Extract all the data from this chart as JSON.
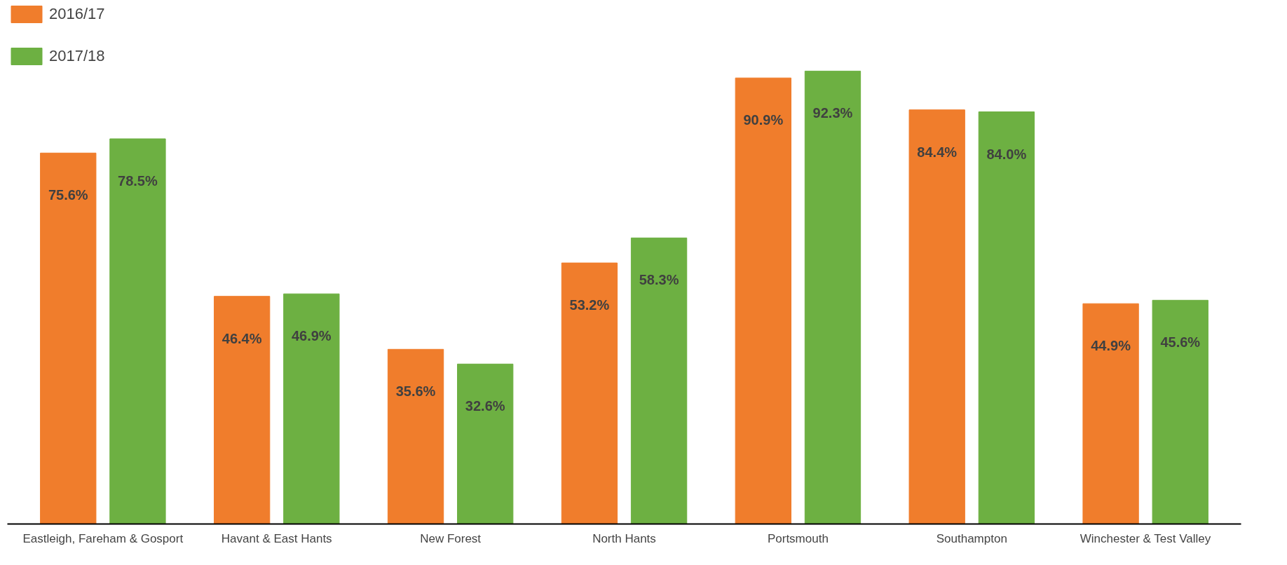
{
  "chart_data": {
    "type": "bar",
    "categories": [
      "Eastleigh, Fareham & Gosport",
      "Havant & East Hants",
      "New Forest",
      "North Hants",
      "Portsmouth",
      "Southampton",
      "Winchester & Test Valley"
    ],
    "series": [
      {
        "name": "2016/17",
        "color": "#f07d2c",
        "values": [
          75.6,
          46.4,
          35.6,
          53.2,
          90.9,
          84.4,
          44.9
        ],
        "value_labels": [
          "75.6%",
          "46.4%",
          "35.6%",
          "53.2%",
          "90.9%",
          "84.4%",
          "44.9%"
        ]
      },
      {
        "name": "2017/18",
        "color": "#6db042",
        "values": [
          78.5,
          46.9,
          32.6,
          58.3,
          92.3,
          84.0,
          45.6
        ],
        "value_labels": [
          "78.5%",
          "46.9%",
          "32.6%",
          "58.3%",
          "92.3%",
          "84.0%",
          "45.6%"
        ]
      }
    ],
    "ylim": [
      0,
      106
    ],
    "tick_labels": "x",
    "grid": false,
    "legend": "top left"
  }
}
